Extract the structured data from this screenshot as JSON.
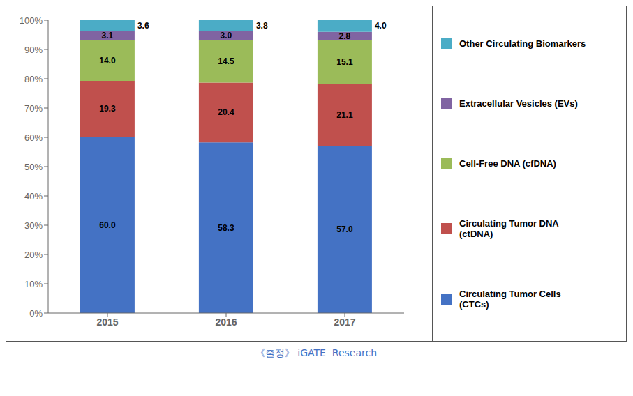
{
  "chart_data": {
    "type": "bar",
    "stacked": true,
    "data_labels": true,
    "grid": false,
    "categories": [
      "2015",
      "2016",
      "2017"
    ],
    "series": [
      {
        "name": "Circulating Tumor Cells\n(CTCs)",
        "color": "#4472C4",
        "values": [
          60.0,
          58.3,
          57.0
        ],
        "value_labels": [
          "60.0",
          "58.3",
          "57.0"
        ]
      },
      {
        "name": "Circulating Tumor DNA\n(ctDNA)",
        "color": "#C0504D",
        "values": [
          19.3,
          20.4,
          21.1
        ],
        "value_labels": [
          "19.3",
          "20.4",
          "21.1"
        ]
      },
      {
        "name": "Cell-Free DNA (cfDNA)",
        "color": "#9BBB59",
        "values": [
          14.0,
          14.5,
          15.1
        ],
        "value_labels": [
          "14.0",
          "14.5",
          "15.1"
        ]
      },
      {
        "name": "Extracellular Vesicles (EVs)",
        "color": "#8064A2",
        "values": [
          3.1,
          3.0,
          2.8
        ],
        "value_labels": [
          "3.1",
          "3.0",
          "2.8"
        ]
      },
      {
        "name": "Other Circulating Biomarkers",
        "color": "#4BACC6",
        "values": [
          3.6,
          3.8,
          4.0
        ],
        "value_labels": [
          "3.6",
          "3.8",
          "4.0"
        ]
      }
    ],
    "ylim": [
      0,
      100
    ],
    "yticks": [
      {
        "value": 0,
        "label": "0%"
      },
      {
        "value": 10,
        "label": "10%"
      },
      {
        "value": 20,
        "label": "20%"
      },
      {
        "value": 30,
        "label": "30%"
      },
      {
        "value": 40,
        "label": "40%"
      },
      {
        "value": 50,
        "label": "50%"
      },
      {
        "value": 60,
        "label": "60%"
      },
      {
        "value": 70,
        "label": "70%"
      },
      {
        "value": 80,
        "label": "80%"
      },
      {
        "value": 90,
        "label": "90%"
      },
      {
        "value": 100,
        "label": "100%"
      }
    ],
    "annotations": [
      "《출정》 iGATE  Research"
    ]
  }
}
